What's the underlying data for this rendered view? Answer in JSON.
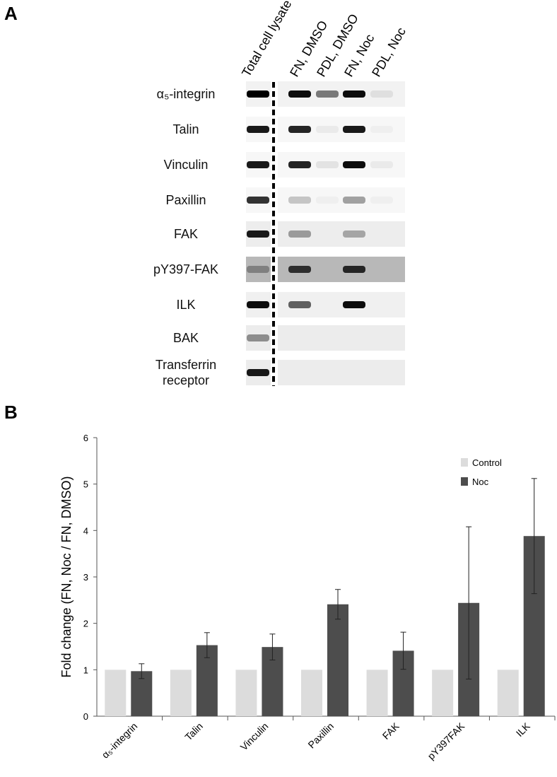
{
  "panel_labels": [
    "A",
    "B"
  ],
  "blot": {
    "lanes": [
      "Total cell lysate",
      "FN, DMSO",
      "PDL, DMSO",
      "FN, Noc",
      "PDL, Noc"
    ],
    "proteins": [
      "α₅-integrin",
      "Talin",
      "Vinculin",
      "Paxillin",
      "FAK",
      "pY397-FAK",
      "ILK",
      "BAK",
      "Transferrin receptor"
    ]
  },
  "chart_data": {
    "type": "bar",
    "ylabel": "Fold change (FN, Noc / FN, DMSO)",
    "categories": [
      "α₅-integrin",
      "Talin",
      "Vinculin",
      "Paxillin",
      "FAK",
      "pY397FAK",
      "ILK"
    ],
    "series": [
      {
        "name": "Control",
        "color": "#dcdcdc",
        "values": [
          1,
          1,
          1,
          1,
          1,
          1,
          1
        ]
      },
      {
        "name": "Noc",
        "color": "#4d4d4d",
        "values": [
          0.97,
          1.53,
          1.49,
          2.41,
          1.41,
          2.44,
          3.88
        ],
        "errors": [
          0.16,
          0.27,
          0.28,
          0.32,
          0.4,
          1.64,
          1.24
        ]
      }
    ],
    "ylim": [
      0,
      6
    ],
    "yticks": [
      0,
      1,
      2,
      3,
      4,
      5,
      6
    ],
    "grid": false,
    "legend": "top-right"
  }
}
